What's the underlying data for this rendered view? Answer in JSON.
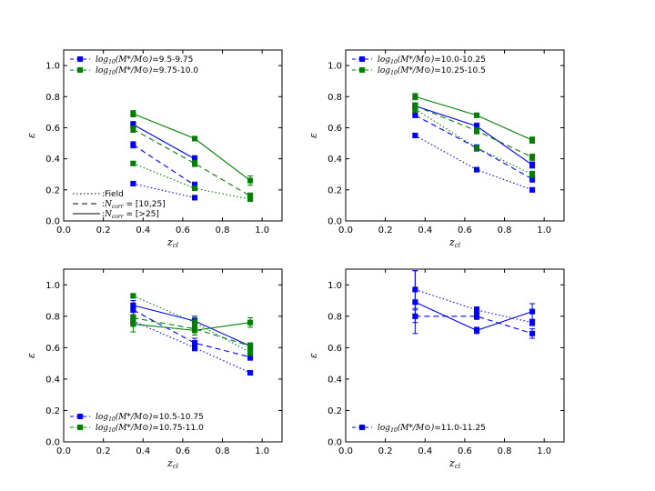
{
  "colors": {
    "blue": "#0000ff",
    "green": "#007f00",
    "black": "#000000",
    "gray": "#333333"
  },
  "chart_data": [
    {
      "type": "line",
      "xlabel": "z_cl",
      "ylabel": "ε",
      "xlim": [
        0.0,
        1.1
      ],
      "ylim": [
        0.0,
        1.1
      ],
      "xticks": [
        "0.0",
        "0.2",
        "0.4",
        "0.6",
        "0.8",
        "1.0"
      ],
      "yticks": [
        "0.0",
        "0.2",
        "0.4",
        "0.6",
        "0.8",
        "1.0"
      ],
      "legend_position": "top-left",
      "legend": [
        {
          "prefix": "log",
          "sub": "10",
          "expr": "(M*/M⊙)",
          "range": "=9.5-9.75",
          "color": "blue"
        },
        {
          "prefix": "log",
          "sub": "10",
          "expr": "(M*/M⊙)",
          "range": "=9.75-10.0",
          "color": "green"
        }
      ],
      "style_legend": {
        "position": "bottom-left",
        "entries": [
          {
            "style": "dotted",
            "label": ":Field"
          },
          {
            "style": "dashed",
            "label": ":N_corr = [10,25]",
            "label_prefix": ":",
            "label_main": "N",
            "label_sub": "corr",
            "label_rest": " = [10,25]"
          },
          {
            "style": "solid",
            "label": ":N_corr = [>25]",
            "label_prefix": ":",
            "label_main": "N",
            "label_sub": "corr",
            "label_rest": " = [>25]"
          }
        ]
      },
      "series": [
        {
          "name": "9.5-9.75 Field",
          "color": "blue",
          "style": "dotted",
          "x": [
            0.35,
            0.66,
            0.94
          ],
          "values": [
            0.24,
            0.15,
            null
          ],
          "err": [
            0.01,
            0.01,
            0
          ]
        },
        {
          "name": "9.5-9.75 N[10,25]",
          "color": "blue",
          "style": "dashed",
          "x": [
            0.35,
            0.66,
            0.94
          ],
          "values": [
            0.49,
            0.23,
            null
          ],
          "err": [
            0.02,
            0.02,
            0
          ]
        },
        {
          "name": "9.5-9.75 N[>25]",
          "color": "blue",
          "style": "solid",
          "x": [
            0.35,
            0.66,
            0.94
          ],
          "values": [
            0.62,
            0.4,
            null
          ],
          "err": [
            0.02,
            0.02,
            0
          ]
        },
        {
          "name": "9.75-10.0 Field",
          "color": "green",
          "style": "dotted",
          "x": [
            0.35,
            0.66,
            0.94
          ],
          "values": [
            0.37,
            0.21,
            0.14
          ],
          "err": [
            0.01,
            0.01,
            0.01
          ]
        },
        {
          "name": "9.75-10.0 N[10,25]",
          "color": "green",
          "style": "dashed",
          "x": [
            0.35,
            0.66,
            0.94
          ],
          "values": [
            0.59,
            0.37,
            0.16
          ],
          "err": [
            0.02,
            0.02,
            0.02
          ]
        },
        {
          "name": "9.75-10.0 N[>25]",
          "color": "green",
          "style": "solid",
          "x": [
            0.35,
            0.66,
            0.94
          ],
          "values": [
            0.69,
            0.53,
            0.26
          ],
          "err": [
            0.02,
            0.01,
            0.03
          ]
        }
      ]
    },
    {
      "type": "line",
      "xlabel": "z_cl",
      "ylabel": "ε",
      "xlim": [
        0.0,
        1.1
      ],
      "ylim": [
        0.0,
        1.1
      ],
      "xticks": [
        "0.0",
        "0.2",
        "0.4",
        "0.6",
        "0.8",
        "1.0"
      ],
      "yticks": [
        "0.0",
        "0.2",
        "0.4",
        "0.6",
        "0.8",
        "1.0"
      ],
      "legend_position": "top-left",
      "legend": [
        {
          "prefix": "log",
          "sub": "10",
          "expr": "(M*/M⊙)",
          "range": "=10.0-10.25",
          "color": "blue"
        },
        {
          "prefix": "log",
          "sub": "10",
          "expr": "(M*/M⊙)",
          "range": "=10.25-10.5",
          "color": "green"
        }
      ],
      "series": [
        {
          "name": "10.0-10.25 Field",
          "color": "blue",
          "style": "dotted",
          "x": [
            0.35,
            0.66,
            0.94
          ],
          "values": [
            0.55,
            0.33,
            0.2
          ],
          "err": [
            0.01,
            0.01,
            0.01
          ]
        },
        {
          "name": "10.0-10.25 N[10,25]",
          "color": "blue",
          "style": "dashed",
          "x": [
            0.35,
            0.66,
            0.94
          ],
          "values": [
            0.68,
            0.47,
            0.27
          ],
          "err": [
            0.01,
            0.02,
            0.02
          ]
        },
        {
          "name": "10.0-10.25 N[>25]",
          "color": "blue",
          "style": "solid",
          "x": [
            0.35,
            0.66,
            0.94
          ],
          "values": [
            0.74,
            0.61,
            0.36
          ],
          "err": [
            0.02,
            0.02,
            0.02
          ]
        },
        {
          "name": "10.25-10.5 Field",
          "color": "green",
          "style": "dotted",
          "x": [
            0.35,
            0.66,
            0.94
          ],
          "values": [
            0.72,
            0.47,
            0.3
          ],
          "err": [
            0.02,
            0.01,
            0.02
          ]
        },
        {
          "name": "10.25-10.5 N[10,25]",
          "color": "green",
          "style": "dashed",
          "x": [
            0.35,
            0.66,
            0.94
          ],
          "values": [
            0.74,
            0.58,
            0.41
          ],
          "err": [
            0.02,
            0.02,
            0.02
          ]
        },
        {
          "name": "10.25-10.5 N[>25]",
          "color": "green",
          "style": "solid",
          "x": [
            0.35,
            0.66,
            0.94
          ],
          "values": [
            0.8,
            0.68,
            0.52
          ],
          "err": [
            0.02,
            0.01,
            0.02
          ]
        }
      ]
    },
    {
      "type": "line",
      "xlabel": "z_cl",
      "ylabel": "ε",
      "xlim": [
        0.0,
        1.1
      ],
      "ylim": [
        0.0,
        1.1
      ],
      "xticks": [
        "0.0",
        "0.2",
        "0.4",
        "0.6",
        "0.8",
        "1.0"
      ],
      "yticks": [
        "0.0",
        "0.2",
        "0.4",
        "0.6",
        "0.8",
        "1.0"
      ],
      "legend_position": "bottom-left",
      "legend": [
        {
          "prefix": "log",
          "sub": "10",
          "expr": "(M*/M⊙)",
          "range": "=10.5-10.75",
          "color": "blue"
        },
        {
          "prefix": "log",
          "sub": "10",
          "expr": "(M*/M⊙)",
          "range": "=10.75-11.0",
          "color": "green"
        }
      ],
      "series": [
        {
          "name": "10.5-10.75 Field",
          "color": "blue",
          "style": "dotted",
          "x": [
            0.35,
            0.66,
            0.94
          ],
          "values": [
            0.77,
            0.6,
            0.44
          ],
          "err": [
            0.02,
            0.02,
            0.01
          ]
        },
        {
          "name": "10.5-10.75 N[10,25]",
          "color": "blue",
          "style": "dashed",
          "x": [
            0.35,
            0.66,
            0.94
          ],
          "values": [
            0.84,
            0.63,
            0.54
          ],
          "err": [
            0.03,
            0.03,
            0.02
          ]
        },
        {
          "name": "10.5-10.75 N[>25]",
          "color": "blue",
          "style": "solid",
          "x": [
            0.35,
            0.66,
            0.94
          ],
          "values": [
            0.87,
            0.77,
            0.61
          ],
          "err": [
            0.03,
            0.03,
            0.02
          ]
        },
        {
          "name": "10.75-11.0 Field",
          "color": "green",
          "style": "dotted",
          "x": [
            0.35,
            0.66,
            0.94
          ],
          "values": [
            0.93,
            0.76,
            0.57
          ],
          "err": [
            0.01,
            0.03,
            0.02
          ]
        },
        {
          "name": "10.75-11.0 N[10,25]",
          "color": "green",
          "style": "dashed",
          "x": [
            0.35,
            0.66,
            0.94
          ],
          "values": [
            0.79,
            0.72,
            0.61
          ],
          "err": [
            0.02,
            0.02,
            0.02
          ]
        },
        {
          "name": "10.75-11.0 N[>25]",
          "color": "green",
          "style": "solid",
          "x": [
            0.35,
            0.66,
            0.94
          ],
          "values": [
            0.75,
            0.71,
            0.76
          ],
          "err": [
            0.05,
            0.03,
            0.03
          ]
        }
      ]
    },
    {
      "type": "line",
      "xlabel": "z_cl",
      "ylabel": "ε",
      "xlim": [
        0.0,
        1.1
      ],
      "ylim": [
        0.0,
        1.1
      ],
      "xticks": [
        "0.0",
        "0.2",
        "0.4",
        "0.6",
        "0.8",
        "1.0"
      ],
      "yticks": [
        "0.0",
        "0.2",
        "0.4",
        "0.6",
        "0.8",
        "1.0"
      ],
      "legend_position": "bottom-left",
      "legend": [
        {
          "prefix": "log",
          "sub": "10",
          "expr": "(M*/M⊙)",
          "range": "=11.0-11.25",
          "color": "blue"
        }
      ],
      "series": [
        {
          "name": "11.0-11.25 Field",
          "color": "blue",
          "style": "dotted",
          "x": [
            0.35,
            0.66,
            0.94
          ],
          "values": [
            0.97,
            0.84,
            0.76
          ],
          "err": [
            0.12,
            0.02,
            0.02
          ]
        },
        {
          "name": "11.0-11.25 N[10,25]",
          "color": "blue",
          "style": "dashed",
          "x": [
            0.35,
            0.66,
            0.94
          ],
          "values": [
            0.8,
            0.8,
            0.69
          ],
          "err": [
            0.04,
            0.02,
            0.03
          ]
        },
        {
          "name": "11.0-11.25 N[>25]",
          "color": "blue",
          "style": "solid",
          "x": [
            0.35,
            0.66,
            0.94
          ],
          "values": [
            0.89,
            0.71,
            0.83
          ],
          "err": [
            0.2,
            0.02,
            0.05
          ]
        }
      ]
    }
  ]
}
